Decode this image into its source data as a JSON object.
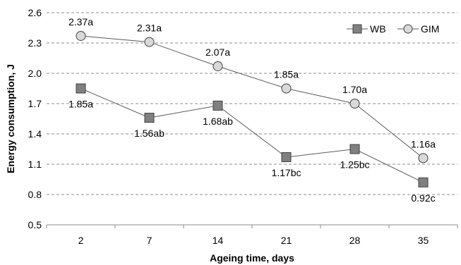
{
  "chart_data": {
    "type": "line",
    "title": "",
    "xlabel": "Ageing time, days",
    "ylabel": "Energy consumption, J",
    "categories": [
      "2",
      "7",
      "14",
      "21",
      "28",
      "35"
    ],
    "ylim": [
      0.5,
      2.6
    ],
    "yticks": [
      "0.5",
      "0.8",
      "1.1",
      "1.4",
      "1.7",
      "2.0",
      "2.3",
      "2.6"
    ],
    "grid": "horizontal dashed",
    "legend_position": "top-right",
    "series": [
      {
        "name": "WB",
        "marker": "square",
        "marker_color": "#808080",
        "values": [
          1.85,
          1.56,
          1.68,
          1.17,
          1.25,
          0.92
        ],
        "labels": [
          "1.85a",
          "1.56ab",
          "1.68ab",
          "1.17bc",
          "1.25bc",
          "0.92c"
        ],
        "label_position": "below"
      },
      {
        "name": "GIM",
        "marker": "circle",
        "marker_color": "#d9d9d9",
        "values": [
          2.37,
          2.31,
          2.07,
          1.85,
          1.7,
          1.16
        ],
        "labels": [
          "2.37a",
          "2.31a",
          "2.07a",
          "1.85a",
          "1.70a",
          "1.16a"
        ],
        "label_position": "above"
      }
    ]
  }
}
